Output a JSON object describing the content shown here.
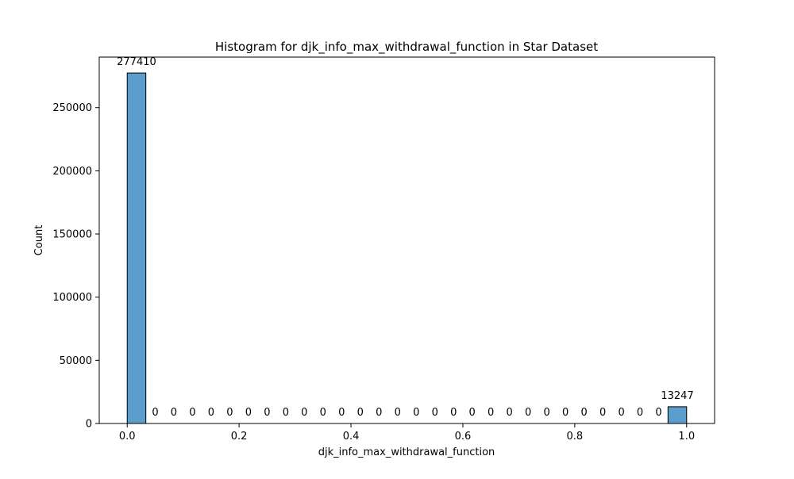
{
  "chart_data": {
    "type": "bar",
    "title": "Histogram for djk_info_max_withdrawal_function in Star Dataset",
    "xlabel": "djk_info_max_withdrawal_function",
    "ylabel": "Count",
    "xlim": [
      -0.05,
      1.05
    ],
    "ylim": [
      0,
      290000
    ],
    "x_ticks": [
      0.0,
      0.2,
      0.4,
      0.6,
      0.8,
      1.0
    ],
    "x_tick_labels": [
      "0.0",
      "0.2",
      "0.4",
      "0.6",
      "0.8",
      "1.0"
    ],
    "y_ticks": [
      0,
      50000,
      100000,
      150000,
      200000,
      250000
    ],
    "y_tick_labels": [
      "0",
      "50000",
      "100000",
      "150000",
      "200000",
      "250000"
    ],
    "bins": [
      {
        "x0": 0.0,
        "x1": 0.0333,
        "count": 277410
      },
      {
        "x0": 0.0333,
        "x1": 0.0667,
        "count": 0
      },
      {
        "x0": 0.0667,
        "x1": 0.1,
        "count": 0
      },
      {
        "x0": 0.1,
        "x1": 0.1333,
        "count": 0
      },
      {
        "x0": 0.1333,
        "x1": 0.1667,
        "count": 0
      },
      {
        "x0": 0.1667,
        "x1": 0.2,
        "count": 0
      },
      {
        "x0": 0.2,
        "x1": 0.2333,
        "count": 0
      },
      {
        "x0": 0.2333,
        "x1": 0.2667,
        "count": 0
      },
      {
        "x0": 0.2667,
        "x1": 0.3,
        "count": 0
      },
      {
        "x0": 0.3,
        "x1": 0.3333,
        "count": 0
      },
      {
        "x0": 0.3333,
        "x1": 0.3667,
        "count": 0
      },
      {
        "x0": 0.3667,
        "x1": 0.4,
        "count": 0
      },
      {
        "x0": 0.4,
        "x1": 0.4333,
        "count": 0
      },
      {
        "x0": 0.4333,
        "x1": 0.4667,
        "count": 0
      },
      {
        "x0": 0.4667,
        "x1": 0.5,
        "count": 0
      },
      {
        "x0": 0.5,
        "x1": 0.5333,
        "count": 0
      },
      {
        "x0": 0.5333,
        "x1": 0.5667,
        "count": 0
      },
      {
        "x0": 0.5667,
        "x1": 0.6,
        "count": 0
      },
      {
        "x0": 0.6,
        "x1": 0.6333,
        "count": 0
      },
      {
        "x0": 0.6333,
        "x1": 0.6667,
        "count": 0
      },
      {
        "x0": 0.6667,
        "x1": 0.7,
        "count": 0
      },
      {
        "x0": 0.7,
        "x1": 0.7333,
        "count": 0
      },
      {
        "x0": 0.7333,
        "x1": 0.7667,
        "count": 0
      },
      {
        "x0": 0.7667,
        "x1": 0.8,
        "count": 0
      },
      {
        "x0": 0.8,
        "x1": 0.8333,
        "count": 0
      },
      {
        "x0": 0.8333,
        "x1": 0.8667,
        "count": 0
      },
      {
        "x0": 0.8667,
        "x1": 0.9,
        "count": 0
      },
      {
        "x0": 0.9,
        "x1": 0.9333,
        "count": 0
      },
      {
        "x0": 0.9333,
        "x1": 0.9667,
        "count": 0
      },
      {
        "x0": 0.9667,
        "x1": 1.0,
        "count": 13247
      }
    ],
    "bar_color": "#5b9ecb",
    "bar_edge_color": "#000000",
    "grid": false,
    "legend": "none"
  }
}
